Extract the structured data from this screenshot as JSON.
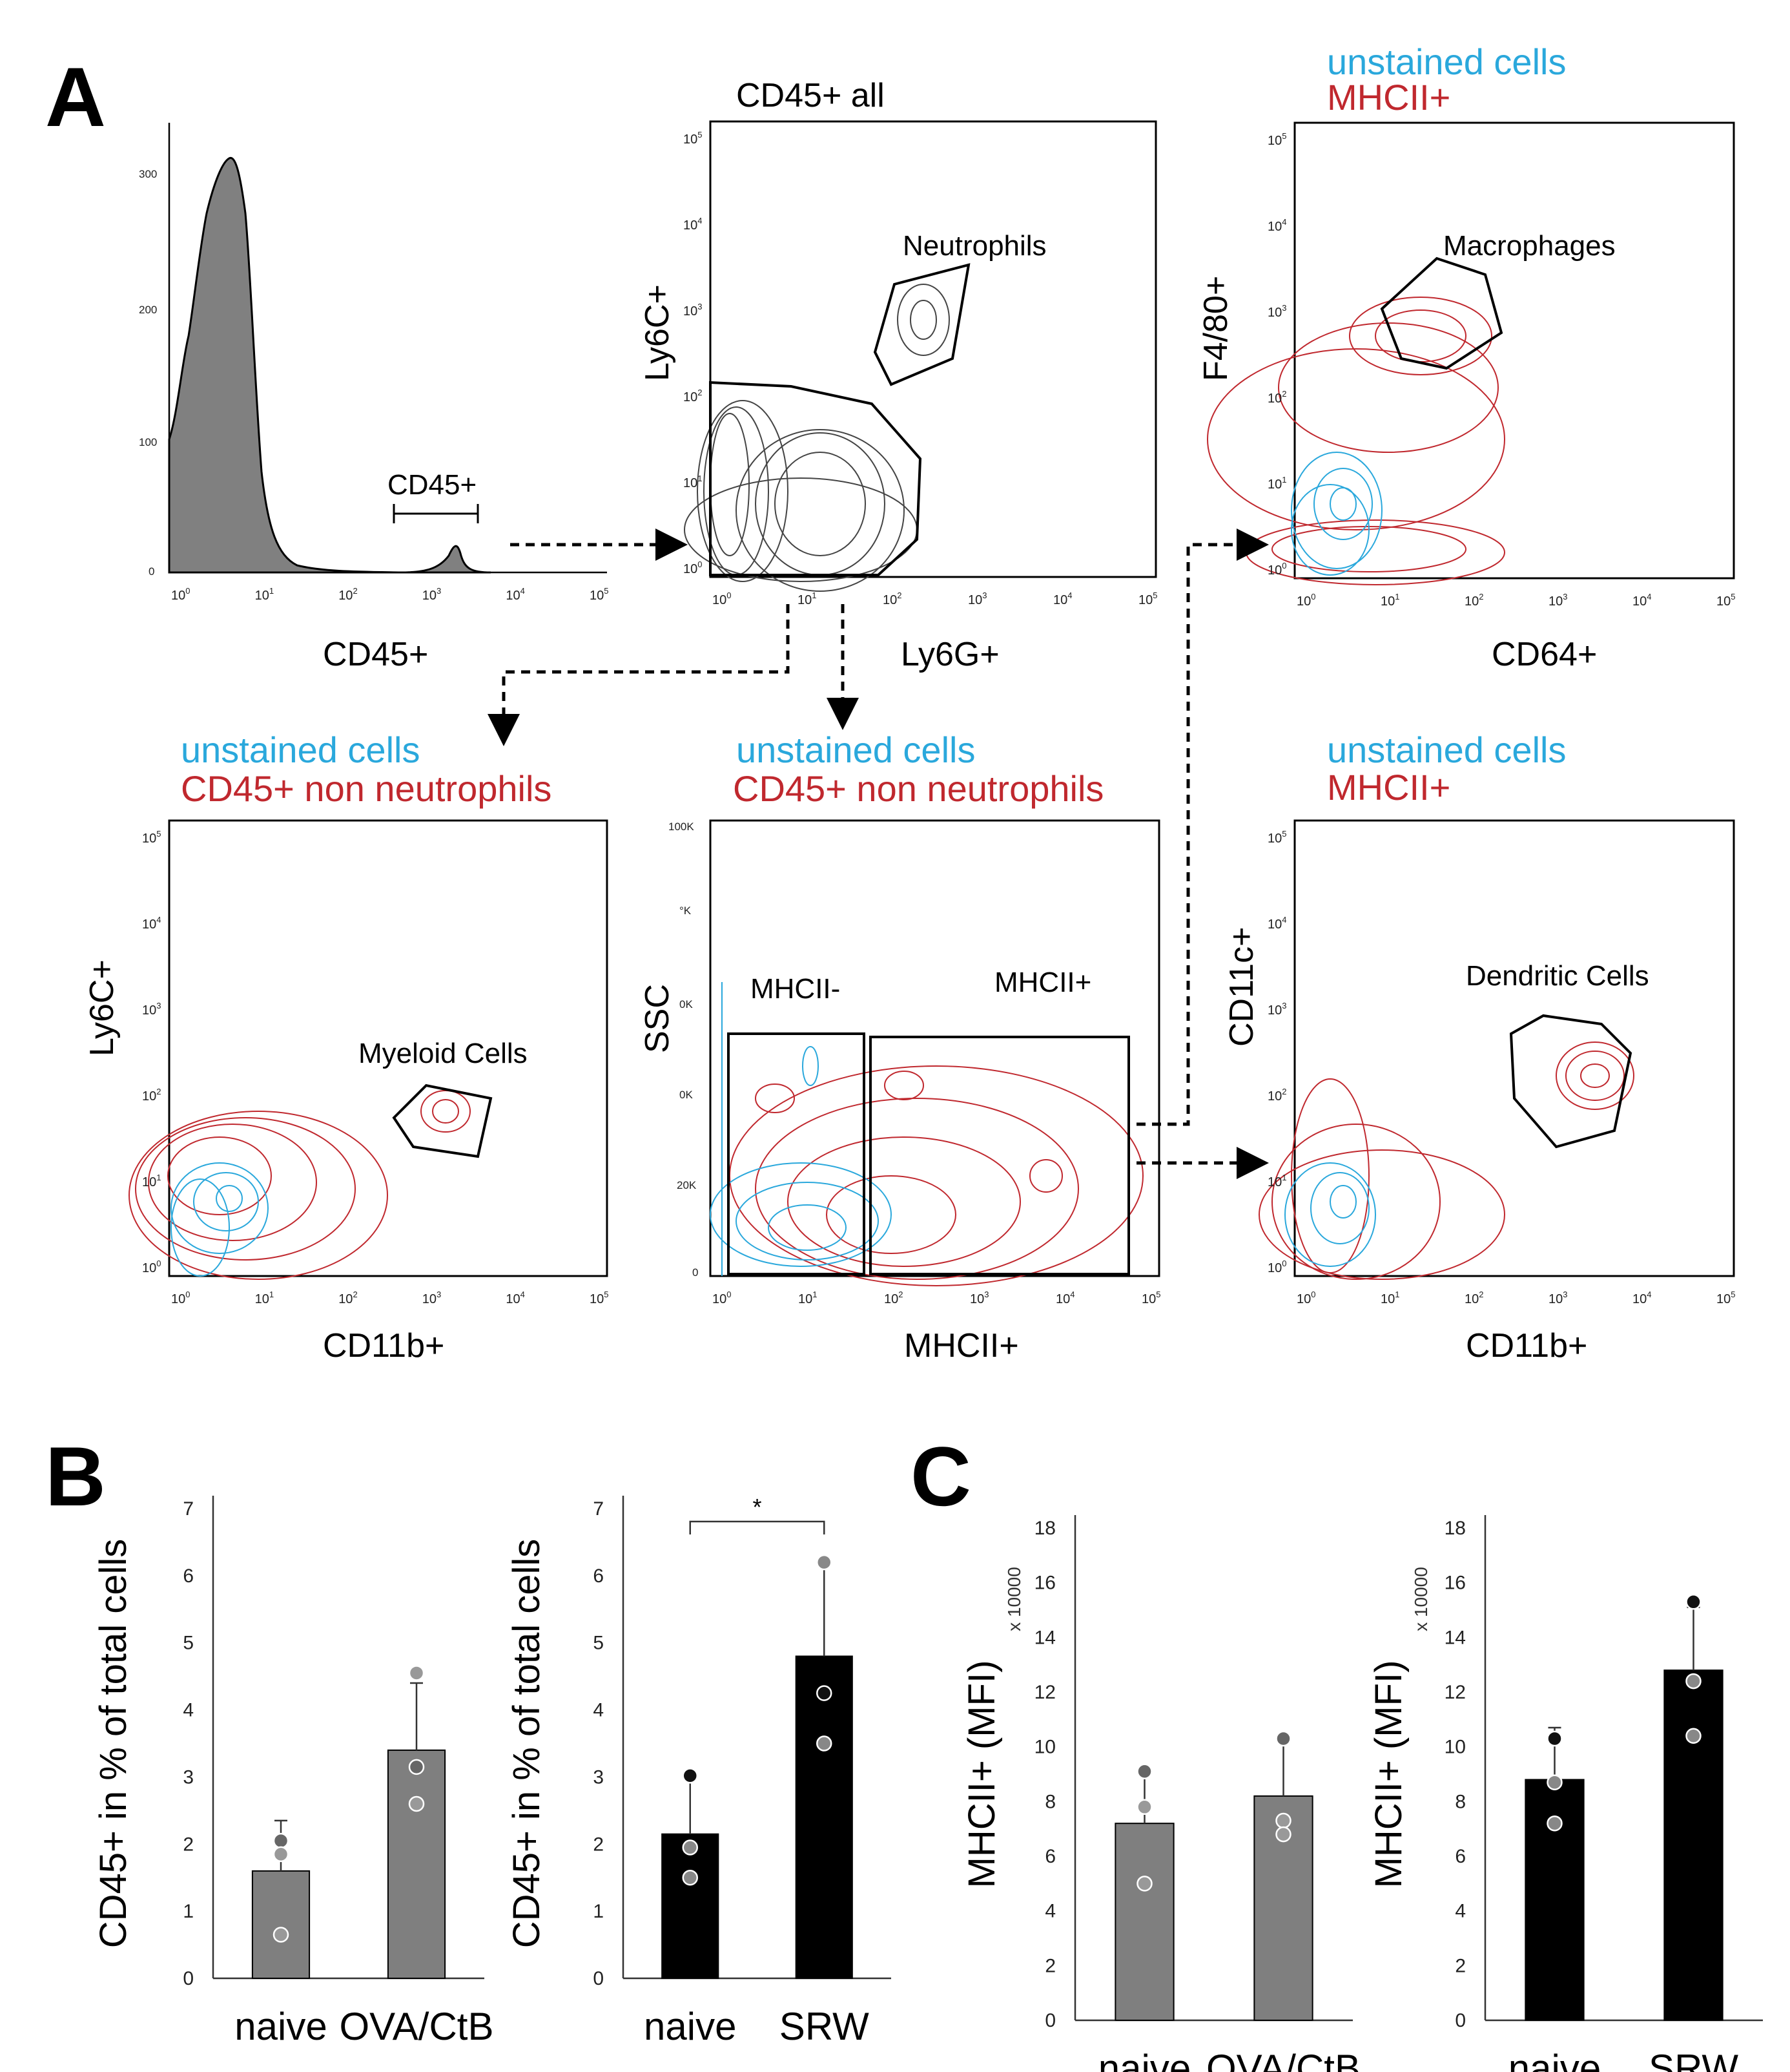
{
  "panel_letters": [
    "A",
    "B",
    "C"
  ],
  "colors": {
    "unstained": "#2aa8dc",
    "stained": "#c0282e",
    "grey_bar": "#7f7f7f",
    "black_bar": "#000000"
  },
  "flow": {
    "p1": {
      "xlabel": "CD45+",
      "gate": "CD45+",
      "yticks": [
        "0",
        "100",
        "200",
        "300"
      ]
    },
    "p2": {
      "title": "CD45+ all",
      "xlabel": "Ly6G+",
      "ylabel": "Ly6C+",
      "gate": "Neutrophils"
    },
    "p3": {
      "legend1": "unstained cells",
      "legend2": "MHCII+",
      "xlabel": "CD64+",
      "ylabel": "F4/80+",
      "gate": "Macrophages"
    },
    "p4": {
      "legend1": "unstained cells",
      "legend2": "CD45+ non neutrophils",
      "xlabel": "CD11b+",
      "ylabel": "Ly6C+",
      "gate": "Myeloid Cells"
    },
    "p5": {
      "legend1": "unstained cells",
      "legend2": "CD45+ non neutrophils",
      "xlabel": "MHCII+",
      "ylabel": "SSC",
      "gate1": "MHCII-",
      "gate2": "MHCII+",
      "yticks": [
        "0",
        "20K",
        "0K",
        "0K",
        "°K",
        "100K"
      ]
    },
    "p6": {
      "legend1": "unstained cells",
      "legend2": "MHCII+",
      "xlabel": "CD11b+",
      "ylabel": "CD11c+",
      "gate": "Dendritic Cells"
    },
    "log_ticks": {
      "base": "10",
      "exps": [
        "0",
        "1",
        "2",
        "3",
        "4",
        "5"
      ]
    }
  },
  "chart_data": [
    {
      "type": "bar",
      "panel": "B",
      "categories": [
        "naive",
        "OVA/CtB"
      ],
      "values": [
        1.6,
        3.4
      ],
      "errors": [
        0.75,
        1.0
      ],
      "points": [
        [
          2.05,
          1.85,
          0.65
        ],
        [
          3.15,
          2.6,
          4.55
        ]
      ],
      "ylabel": "CD45+ in % of total cells",
      "ylim": [
        0,
        7
      ],
      "yticks": [
        "0",
        "1",
        "2",
        "3",
        "4",
        "5",
        "6",
        "7"
      ],
      "color": "grey"
    },
    {
      "type": "bar",
      "panel": "B",
      "categories": [
        "naive",
        "SRW"
      ],
      "values": [
        2.15,
        4.8
      ],
      "errors": [
        0.85,
        1.4
      ],
      "points": [
        [
          3.02,
          1.95,
          1.5
        ],
        [
          4.25,
          3.5,
          6.2
        ]
      ],
      "ylabel": "CD45+ in % of total cells",
      "ylim": [
        0,
        7
      ],
      "yticks": [
        "0",
        "1",
        "2",
        "3",
        "4",
        "5",
        "6",
        "7"
      ],
      "color": "black",
      "significance": "*"
    },
    {
      "type": "bar",
      "panel": "C",
      "categories": [
        "naive",
        "OVA/CtB"
      ],
      "values": [
        7.2,
        8.2
      ],
      "errors": [
        1.9,
        2.1
      ],
      "points": [
        [
          9.1,
          7.8,
          5.0
        ],
        [
          10.3,
          7.3,
          6.8
        ]
      ],
      "ylabel": "MHCII+ (MFI)",
      "ymult": "x 10000",
      "ylim": [
        0,
        18
      ],
      "yticks": [
        "0",
        "2",
        "4",
        "6",
        "8",
        "10",
        "12",
        "14",
        "16",
        "18"
      ],
      "color": "grey"
    },
    {
      "type": "bar",
      "panel": "C",
      "categories": [
        "naive",
        "SRW"
      ],
      "values": [
        8.8,
        12.8
      ],
      "errors": [
        1.9,
        2.3
      ],
      "points": [
        [
          10.3,
          8.7,
          7.2
        ],
        [
          15.3,
          12.4,
          10.4
        ]
      ],
      "ylabel": "MHCII+ (MFI)",
      "ymult": "x 10000",
      "ylim": [
        0,
        18
      ],
      "yticks": [
        "0",
        "2",
        "4",
        "6",
        "8",
        "10",
        "12",
        "14",
        "16",
        "18"
      ],
      "color": "black"
    }
  ]
}
